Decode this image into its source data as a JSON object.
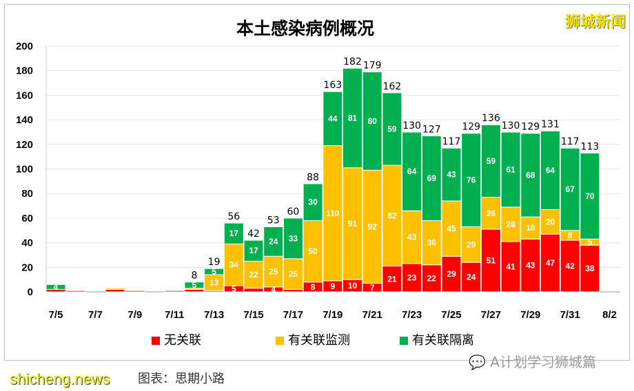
{
  "chart_data": {
    "type": "bar",
    "stacked": true,
    "title": "本土感染病例概况",
    "categories": [
      "7/5",
      "7/6",
      "7/7",
      "7/8",
      "7/9",
      "7/10",
      "7/11",
      "7/12",
      "7/13",
      "7/14",
      "7/15",
      "7/16",
      "7/17",
      "7/18",
      "7/19",
      "7/20",
      "7/21",
      "7/22",
      "7/23",
      "7/24",
      "7/25",
      "7/26",
      "7/27",
      "7/28",
      "7/29",
      "7/30",
      "7/31",
      "8/1"
    ],
    "x_tick_labels": [
      "7/5",
      "7/7",
      "7/9",
      "7/11",
      "7/13",
      "7/15",
      "7/17",
      "7/19",
      "7/21",
      "7/23",
      "7/25",
      "7/27",
      "7/29",
      "7/31",
      "8/2"
    ],
    "ylim": [
      0,
      200
    ],
    "y_ticks": [
      0,
      20,
      40,
      60,
      80,
      100,
      120,
      140,
      160,
      180,
      200
    ],
    "grid": true,
    "legend_position": "bottom",
    "series": [
      {
        "name": "无关联",
        "color": "#ff0000",
        "values": [
          2,
          1,
          0,
          2,
          1,
          0,
          1,
          2,
          1,
          5,
          3,
          4,
          2,
          8,
          9,
          10,
          7,
          21,
          23,
          22,
          29,
          24,
          51,
          41,
          43,
          47,
          42,
          38
        ]
      },
      {
        "name": "有关联监测",
        "color": "#ffc000",
        "values": [
          0,
          0,
          0,
          1,
          0,
          0,
          0,
          1,
          13,
          34,
          22,
          25,
          25,
          50,
          110,
          91,
          92,
          82,
          43,
          36,
          45,
          29,
          26,
          28,
          18,
          20,
          8,
          5
        ]
      },
      {
        "name": "有关联隔离",
        "color": "#00b050",
        "values": [
          4,
          0,
          0,
          0,
          0,
          0,
          0,
          5,
          5,
          17,
          17,
          24,
          33,
          30,
          44,
          81,
          80,
          59,
          64,
          69,
          43,
          76,
          59,
          61,
          68,
          64,
          67,
          70
        ]
      }
    ],
    "totals": [
      null,
      null,
      null,
      null,
      null,
      null,
      null,
      8,
      19,
      56,
      42,
      53,
      60,
      88,
      163,
      182,
      179,
      162,
      130,
      127,
      117,
      129,
      136,
      130,
      129,
      131,
      117,
      113
    ]
  },
  "brand": "狮城新闻",
  "watermark_wechat": "A计划学习狮城篇",
  "watermark_site": "shicheng.news",
  "caption": "图表：思期小路"
}
